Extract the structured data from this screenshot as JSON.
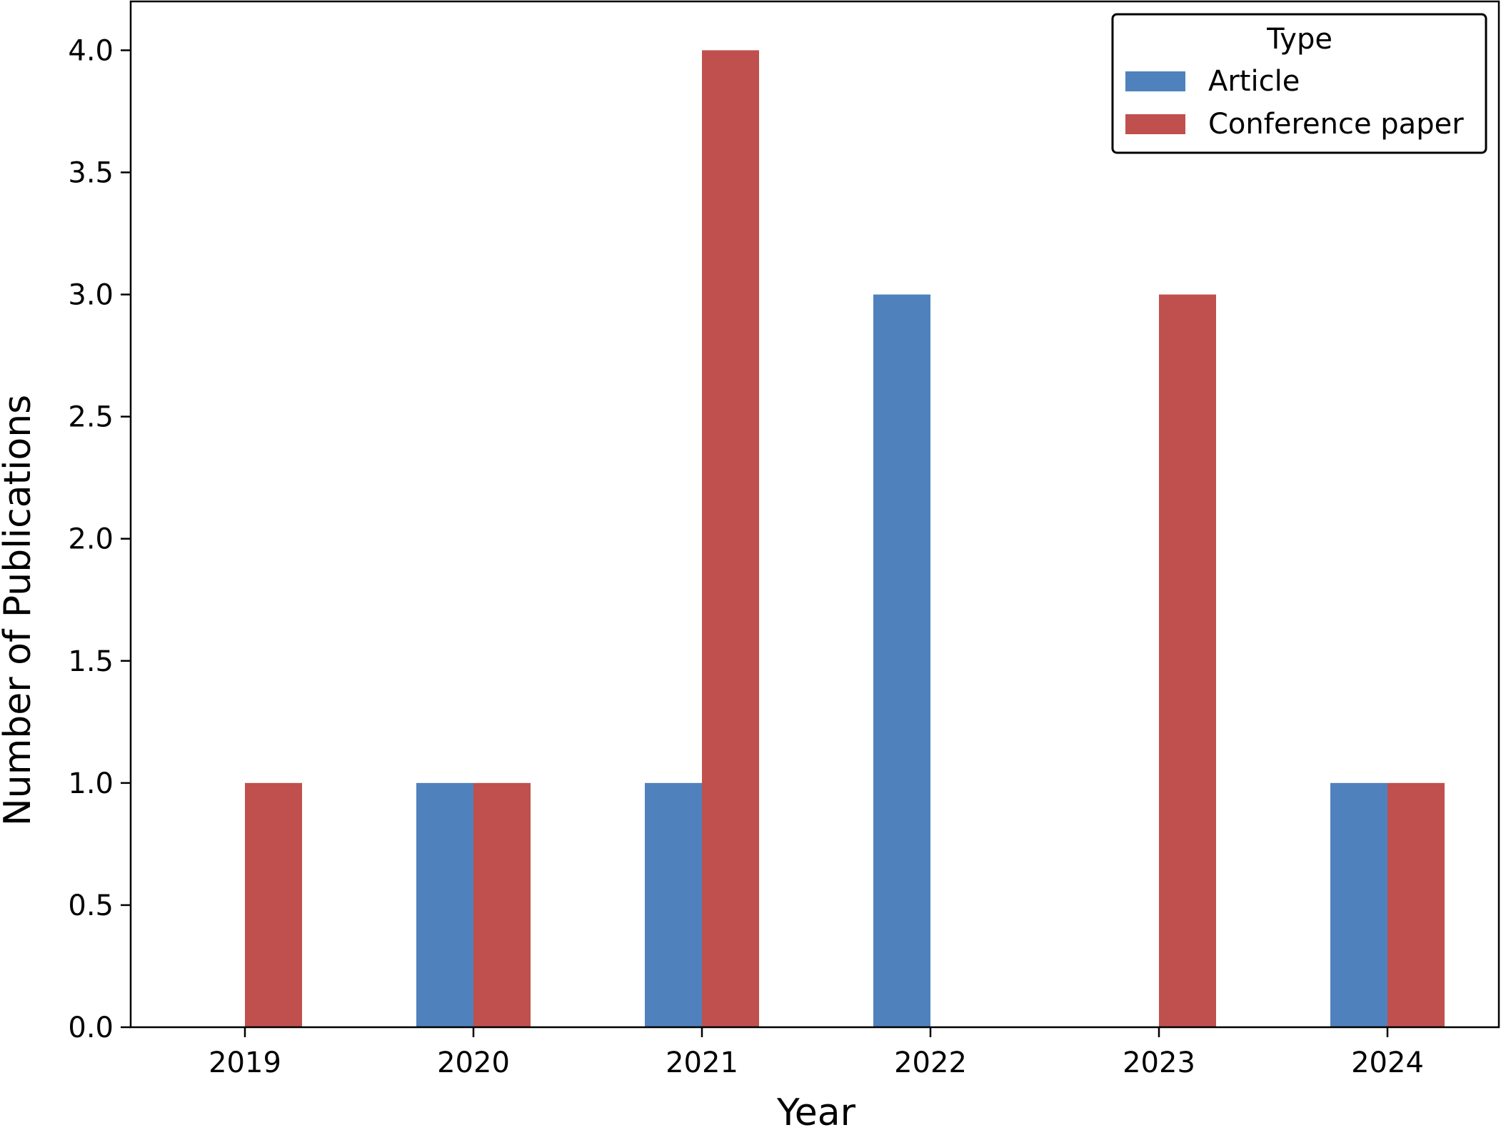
{
  "chart_data": {
    "type": "bar",
    "title": "",
    "xlabel": "Year",
    "ylabel": "Number of Publications",
    "categories": [
      "2019",
      "2020",
      "2021",
      "2022",
      "2023",
      "2024"
    ],
    "series": [
      {
        "name": "Article",
        "color": "#4f81bd",
        "values": [
          0,
          1,
          1,
          3,
          0,
          1
        ]
      },
      {
        "name": "Conference paper",
        "color": "#c0504d",
        "values": [
          1,
          1,
          4,
          0,
          3,
          1
        ]
      }
    ],
    "ylim": [
      0,
      4.2
    ],
    "yticks": [
      "0.0",
      "0.5",
      "1.0",
      "1.5",
      "2.0",
      "2.5",
      "3.0",
      "3.5",
      "4.0"
    ],
    "grid": false,
    "legend": {
      "title": "Type",
      "placement": "top-right"
    }
  }
}
